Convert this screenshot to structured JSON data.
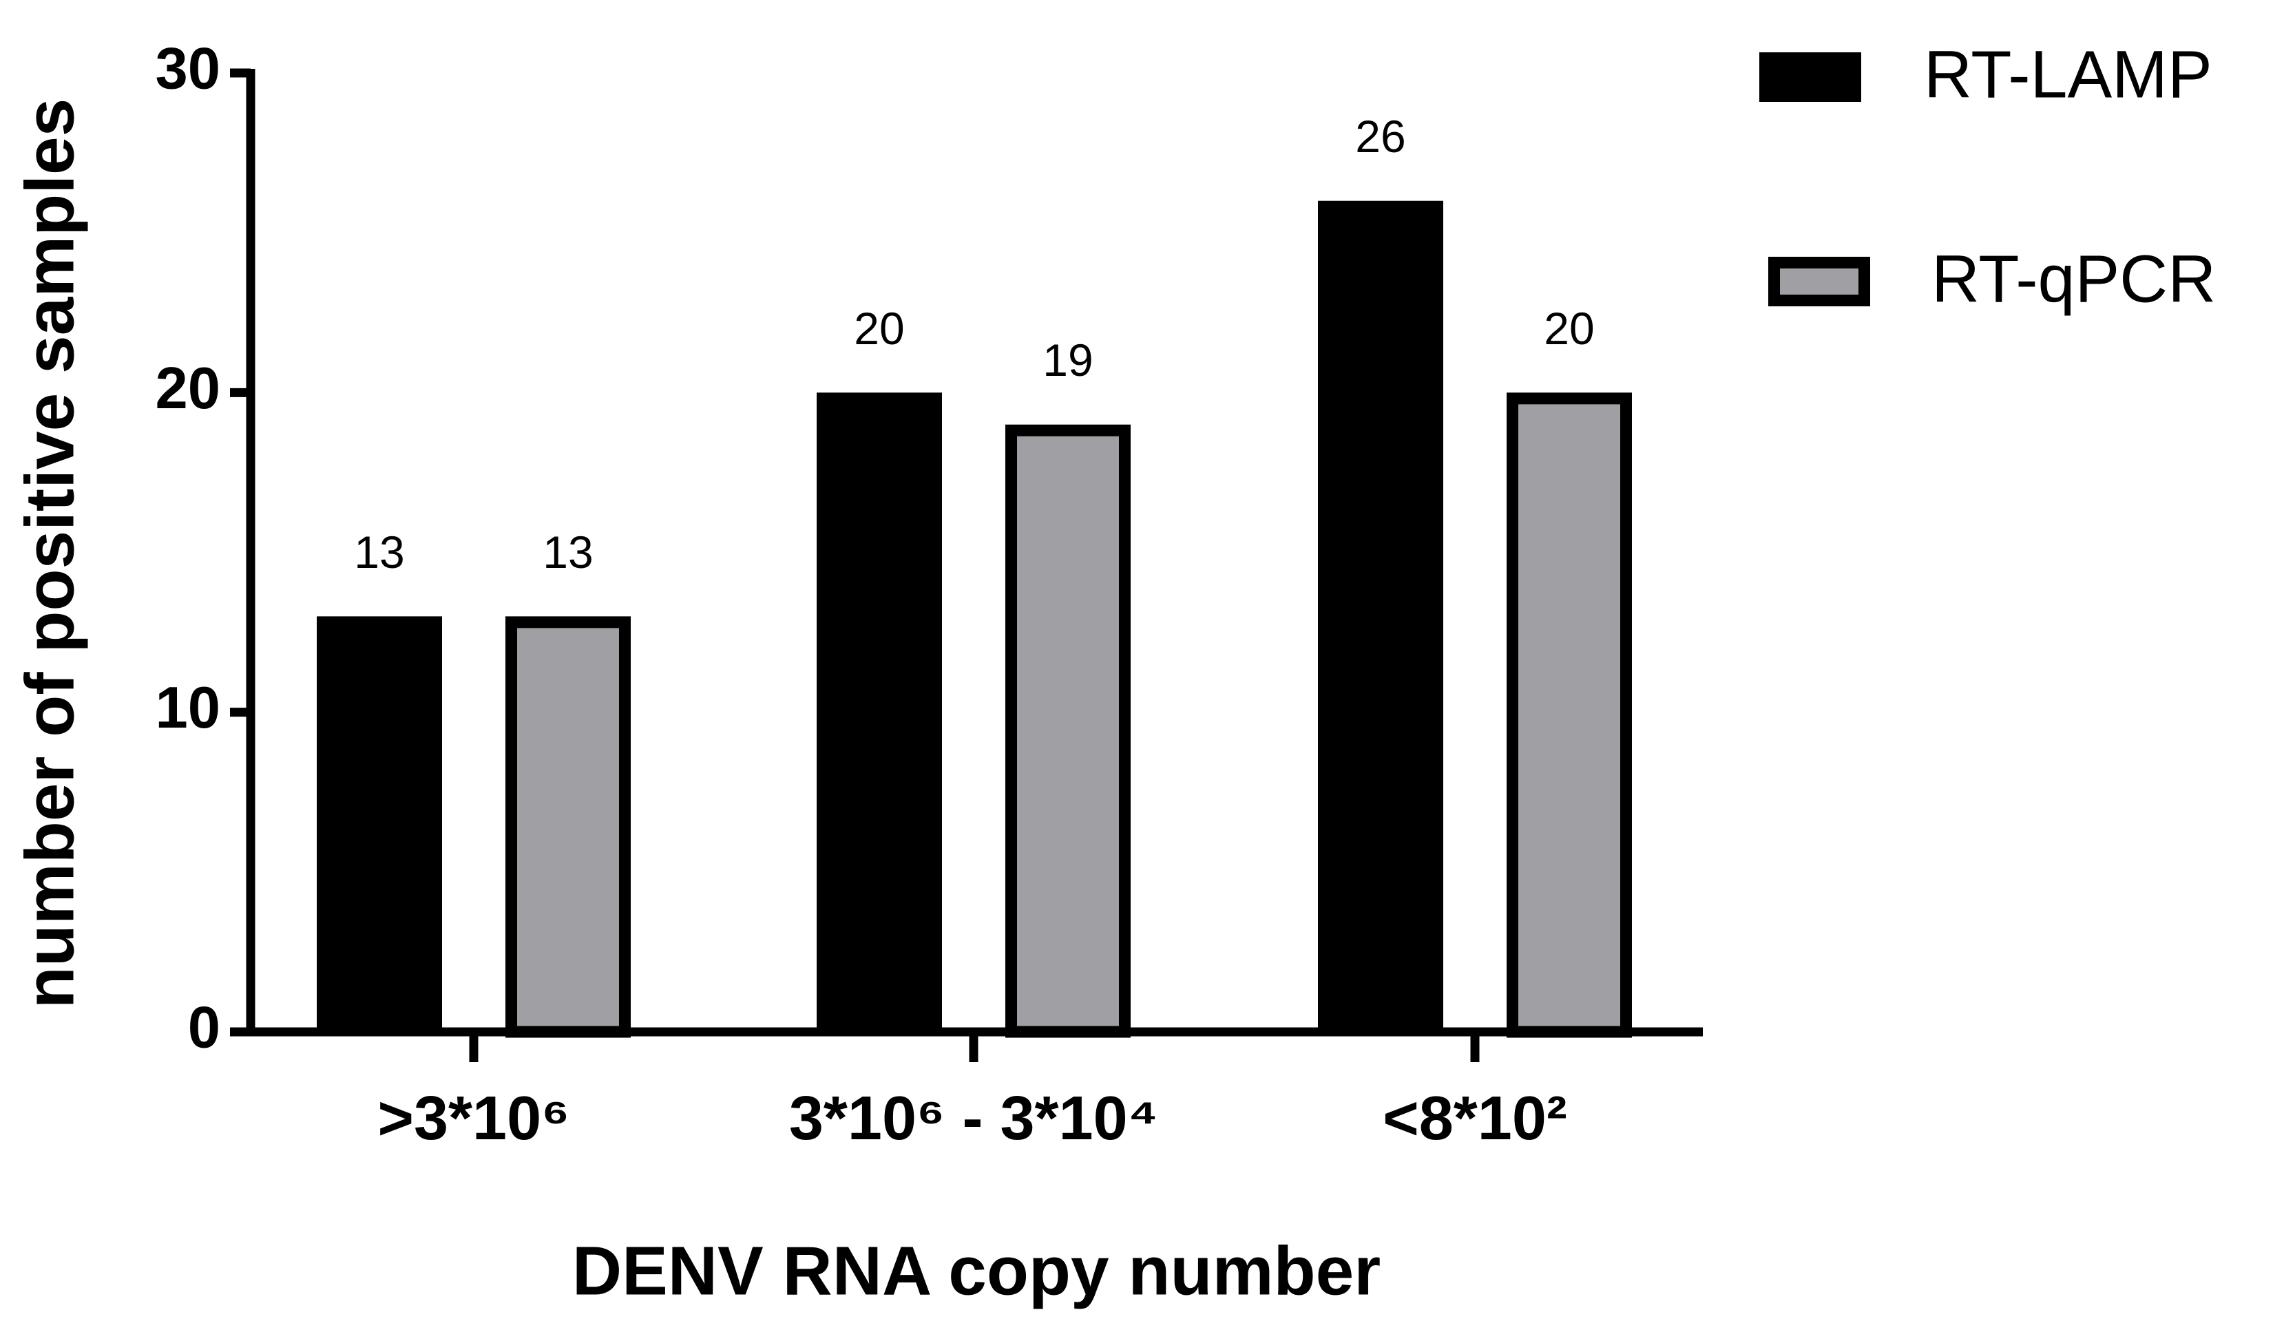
{
  "chart_data": {
    "type": "bar",
    "x_label": "DENV RNA copy number",
    "y_label": "number of positive samples",
    "categories": [
      ">3*10⁶",
      "3*10⁶ - 3*10⁴",
      "<8*10²"
    ],
    "series": [
      {
        "name": "RT-LAMP",
        "color": "#000000",
        "values": [
          13,
          20,
          26
        ]
      },
      {
        "name": "RT-qPCR",
        "color": "#a0a0a4",
        "values": [
          13,
          19,
          20
        ]
      }
    ],
    "ylim": [
      0,
      30
    ],
    "yticks": [
      0,
      10,
      20,
      30
    ]
  }
}
